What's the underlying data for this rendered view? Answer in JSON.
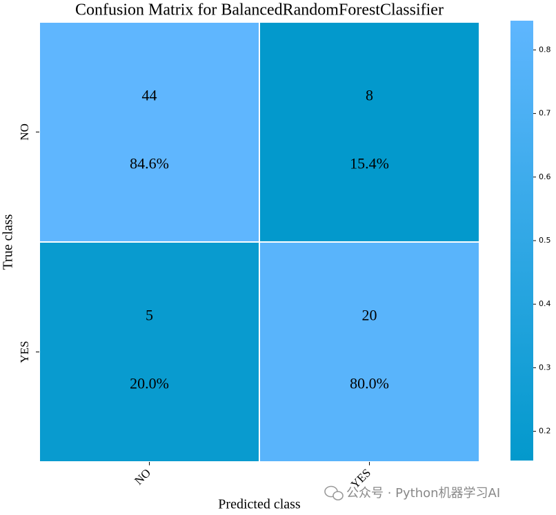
{
  "chart_data": {
    "type": "heatmap",
    "title": "Confusion Matrix for BalancedRandomForestClassifier",
    "x_label": "Predicted class",
    "y_label": "True class",
    "x_categories": [
      "NO",
      "YES"
    ],
    "y_categories": [
      "NO",
      "YES"
    ],
    "counts": [
      [
        44,
        8
      ],
      [
        5,
        20
      ]
    ],
    "values": [
      [
        0.846,
        0.154
      ],
      [
        0.2,
        0.8
      ]
    ],
    "value_labels": [
      [
        "84.6%",
        "15.4%"
      ],
      [
        "20.0%",
        "80.0%"
      ]
    ],
    "clim": [
      0.154,
      0.846
    ],
    "cticks": [
      0.2,
      0.3,
      0.4,
      0.5,
      0.6,
      0.7,
      0.8
    ],
    "colors": [
      "#0399cc",
      "#5fb6fe"
    ]
  },
  "watermark": "公众号 · Python机器学习AI"
}
